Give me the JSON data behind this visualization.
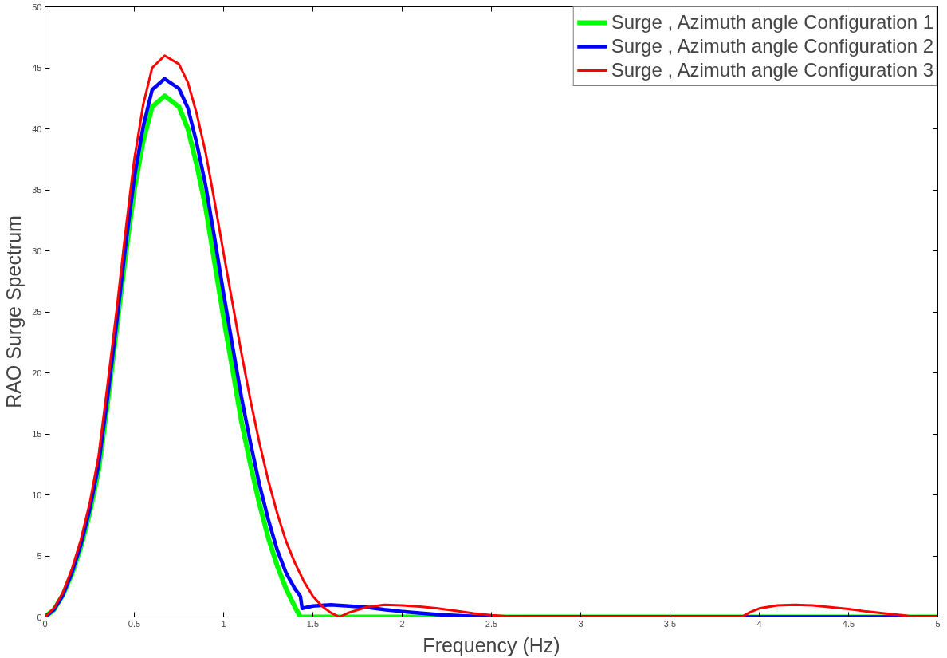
{
  "chart_data": {
    "type": "line",
    "xlabel": "Frequency (Hz)",
    "ylabel": "RAO Surge Spectrum",
    "xlim": [
      0,
      5
    ],
    "ylim": [
      0,
      50
    ],
    "xticks": [
      0,
      0.5,
      1,
      1.5,
      2,
      2.5,
      3,
      3.5,
      4,
      4.5,
      5
    ],
    "yticks": [
      0,
      5,
      10,
      15,
      20,
      25,
      30,
      35,
      40,
      45,
      50
    ],
    "grid": false,
    "legend": "top right",
    "marker": "none",
    "line_style": "solid",
    "series": [
      {
        "name": "Surge , Azimuth angle Configuration 1",
        "color": "#00ff00",
        "x": [
          0,
          0.05,
          0.1,
          0.15,
          0.2,
          0.25,
          0.3,
          0.35,
          0.4,
          0.45,
          0.5,
          0.55,
          0.6,
          0.67,
          0.75,
          0.8,
          0.85,
          0.9,
          0.95,
          1.0,
          1.05,
          1.1,
          1.15,
          1.2,
          1.25,
          1.3,
          1.35,
          1.4,
          1.43,
          1.5,
          5
        ],
        "values": [
          0,
          0.6,
          1.8,
          3.5,
          5.7,
          8.5,
          12,
          17.5,
          23.5,
          29.5,
          35,
          39,
          41.8,
          42.7,
          41.8,
          40,
          37,
          33.5,
          29,
          24.5,
          20.3,
          16,
          12.5,
          9.3,
          6.5,
          4.2,
          2.3,
          0.8,
          0,
          0,
          0
        ]
      },
      {
        "name": "Surge , Azimuth angle Configuration 2",
        "color": "#0000ff",
        "x": [
          0,
          0.05,
          0.1,
          0.15,
          0.2,
          0.25,
          0.3,
          0.35,
          0.4,
          0.45,
          0.5,
          0.55,
          0.6,
          0.67,
          0.75,
          0.8,
          0.85,
          0.9,
          0.95,
          1.0,
          1.05,
          1.1,
          1.15,
          1.2,
          1.25,
          1.3,
          1.35,
          1.4,
          1.43,
          1.44,
          1.5,
          1.6,
          1.7,
          1.8,
          1.9,
          2.0,
          2.2,
          2.4,
          2.6,
          5
        ],
        "values": [
          0,
          0.6,
          1.8,
          3.6,
          5.9,
          8.8,
          12.5,
          18,
          24,
          30.3,
          36,
          40.2,
          43.2,
          44.1,
          43.3,
          41.7,
          38.8,
          35.3,
          31,
          26.5,
          22.2,
          18,
          14.3,
          10.9,
          8,
          5.5,
          3.6,
          2.3,
          1.7,
          0.7,
          0.9,
          1.0,
          0.9,
          0.8,
          0.6,
          0.45,
          0.2,
          0.05,
          0,
          0
        ]
      },
      {
        "name": "Surge , Azimuth angle Configuration 3",
        "color": "#ff0000",
        "x": [
          0,
          0.05,
          0.1,
          0.15,
          0.2,
          0.25,
          0.3,
          0.35,
          0.4,
          0.45,
          0.5,
          0.55,
          0.6,
          0.67,
          0.75,
          0.8,
          0.85,
          0.9,
          0.95,
          1.0,
          1.05,
          1.1,
          1.15,
          1.2,
          1.25,
          1.3,
          1.35,
          1.4,
          1.45,
          1.5,
          1.55,
          1.6,
          1.65,
          1.7,
          1.8,
          1.9,
          2.0,
          2.1,
          2.2,
          2.3,
          2.4,
          2.5,
          2.6,
          2.7,
          3.9,
          3.95,
          4.0,
          4.1,
          4.2,
          4.3,
          4.4,
          4.5,
          4.6,
          4.7,
          4.8,
          4.85,
          4.9,
          5
        ],
        "values": [
          0,
          0.7,
          2,
          3.9,
          6.3,
          9.3,
          13.2,
          19,
          25,
          31.5,
          37.5,
          42,
          45,
          46,
          45.3,
          43.8,
          41.2,
          38,
          34,
          29.8,
          25.7,
          21.6,
          17.8,
          14.3,
          11.2,
          8.5,
          6.2,
          4.4,
          2.9,
          1.7,
          0.9,
          0.35,
          0,
          0.35,
          0.8,
          1.0,
          0.95,
          0.85,
          0.7,
          0.5,
          0.3,
          0.15,
          0.05,
          0,
          0,
          0.4,
          0.7,
          0.95,
          1.0,
          0.95,
          0.8,
          0.65,
          0.45,
          0.3,
          0.15,
          0.05,
          0,
          0
        ]
      }
    ]
  }
}
